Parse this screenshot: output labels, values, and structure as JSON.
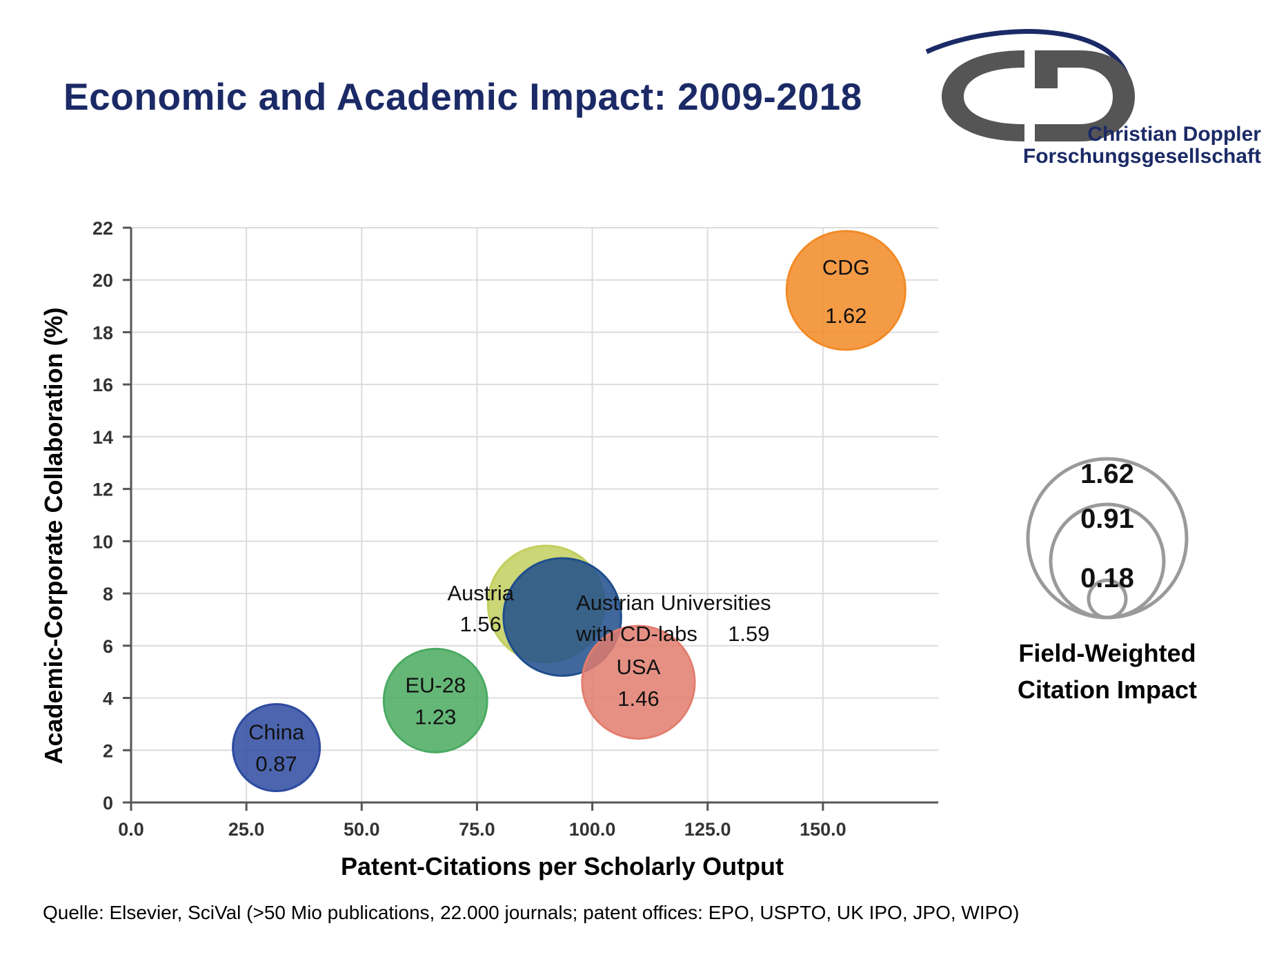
{
  "title": "Economic and Academic Impact: 2009-2018",
  "logo": {
    "line1": "Christian Doppler",
    "line2": "Forschungsgesellschaft",
    "colors": {
      "ring": "#555555",
      "text": "#1b2a66",
      "arc": "#1b2a66"
    }
  },
  "chart_data": {
    "type": "bubble",
    "xlabel": "Patent-Citations per Scholarly Output",
    "ylabel": "Academic-Corporate Collaboration (%)",
    "xlim": [
      0,
      175
    ],
    "ylim": [
      0,
      22
    ],
    "xticks": [
      "0.0",
      "25.0",
      "50.0",
      "75.0",
      "100.0",
      "125.0",
      "150.0"
    ],
    "yticks": [
      "0",
      "2",
      "4",
      "6",
      "8",
      "10",
      "12",
      "14",
      "16",
      "18",
      "20",
      "22"
    ],
    "grid": true,
    "size_metric": "Field-Weighted Citation Impact",
    "points": [
      {
        "name": "China",
        "x": 31.5,
        "y": 2.1,
        "size": 0.87,
        "value_label": "0.87",
        "color": "#2d4aa0"
      },
      {
        "name": "EU-28",
        "x": 66,
        "y": 3.9,
        "size": 1.23,
        "value_label": "1.23",
        "color": "#4aaa60"
      },
      {
        "name": "Austria",
        "x": 90,
        "y": 7.6,
        "size": 1.56,
        "value_label": "1.56",
        "color": "#c2cf5e"
      },
      {
        "name": "Austrian Universities with CD-labs",
        "name_lines": [
          "Austrian Universities",
          "with CD-labs"
        ],
        "x": 93.5,
        "y": 7.1,
        "size": 1.59,
        "value_label": "1.59",
        "color": "#1f4e8c"
      },
      {
        "name": "USA",
        "x": 110,
        "y": 4.6,
        "size": 1.46,
        "value_label": "1.46",
        "color": "#e27d6e"
      },
      {
        "name": "CDG",
        "x": 155,
        "y": 19.6,
        "size": 1.62,
        "value_label": "1.62",
        "color": "#f28a26"
      }
    ],
    "size_legend": {
      "title_lines": [
        "Field-Weighted",
        "Citation Impact"
      ],
      "values": [
        "1.62",
        "0.91",
        "0.18"
      ]
    }
  },
  "source": "Quelle:  Elsevier, SciVal (>50 Mio publications, 22.000 journals;  patent offices: EPO, USPTO, UK IPO,  JPO, WIPO)"
}
